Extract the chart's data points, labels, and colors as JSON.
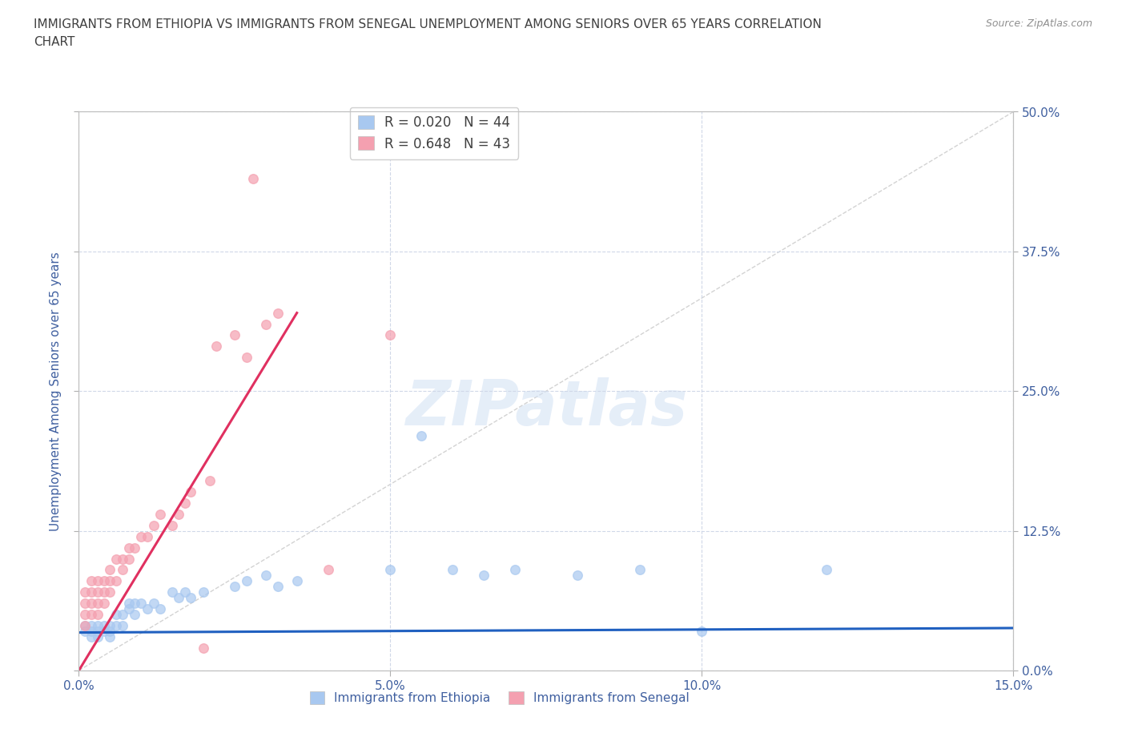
{
  "title_line1": "IMMIGRANTS FROM ETHIOPIA VS IMMIGRANTS FROM SENEGAL UNEMPLOYMENT AMONG SENIORS OVER 65 YEARS CORRELATION",
  "title_line2": "CHART",
  "source": "Source: ZipAtlas.com",
  "ylabel": "Unemployment Among Seniors over 65 years",
  "xlim": [
    0.0,
    0.15
  ],
  "ylim": [
    0.0,
    0.5
  ],
  "xticks": [
    0.0,
    0.05,
    0.1,
    0.15
  ],
  "xtick_labels": [
    "0.0%",
    "5.0%",
    "10.0%",
    "15.0%"
  ],
  "yticks": [
    0.0,
    0.125,
    0.25,
    0.375,
    0.5
  ],
  "ytick_labels_right": [
    "0.0%",
    "12.5%",
    "25.0%",
    "37.5%",
    "50.0%"
  ],
  "ethiopia_R": 0.02,
  "ethiopia_N": 44,
  "senegal_R": 0.648,
  "senegal_N": 43,
  "ethiopia_color": "#a8c8f0",
  "senegal_color": "#f4a0b0",
  "ethiopia_line_color": "#2060c0",
  "senegal_line_color": "#e03060",
  "diagonal_color": "#c8c8c8",
  "watermark": "ZIPatlas",
  "ethiopia_x": [
    0.001,
    0.001,
    0.002,
    0.002,
    0.002,
    0.003,
    0.003,
    0.003,
    0.004,
    0.004,
    0.005,
    0.005,
    0.005,
    0.006,
    0.006,
    0.007,
    0.007,
    0.008,
    0.008,
    0.009,
    0.009,
    0.01,
    0.011,
    0.012,
    0.013,
    0.015,
    0.016,
    0.017,
    0.018,
    0.02,
    0.025,
    0.027,
    0.03,
    0.032,
    0.035,
    0.05,
    0.055,
    0.06,
    0.065,
    0.07,
    0.08,
    0.09,
    0.1,
    0.12
  ],
  "ethiopia_y": [
    0.035,
    0.04,
    0.04,
    0.035,
    0.03,
    0.04,
    0.035,
    0.03,
    0.04,
    0.035,
    0.04,
    0.035,
    0.03,
    0.05,
    0.04,
    0.05,
    0.04,
    0.06,
    0.055,
    0.06,
    0.05,
    0.06,
    0.055,
    0.06,
    0.055,
    0.07,
    0.065,
    0.07,
    0.065,
    0.07,
    0.075,
    0.08,
    0.085,
    0.075,
    0.08,
    0.09,
    0.21,
    0.09,
    0.085,
    0.09,
    0.085,
    0.09,
    0.035,
    0.09
  ],
  "senegal_x": [
    0.001,
    0.001,
    0.001,
    0.001,
    0.002,
    0.002,
    0.002,
    0.002,
    0.003,
    0.003,
    0.003,
    0.003,
    0.004,
    0.004,
    0.004,
    0.005,
    0.005,
    0.005,
    0.006,
    0.006,
    0.007,
    0.007,
    0.008,
    0.008,
    0.009,
    0.01,
    0.011,
    0.012,
    0.013,
    0.015,
    0.016,
    0.017,
    0.018,
    0.02,
    0.021,
    0.022,
    0.025,
    0.027,
    0.028,
    0.03,
    0.032,
    0.04,
    0.05
  ],
  "senegal_y": [
    0.04,
    0.05,
    0.06,
    0.07,
    0.05,
    0.06,
    0.07,
    0.08,
    0.05,
    0.06,
    0.07,
    0.08,
    0.06,
    0.07,
    0.08,
    0.07,
    0.08,
    0.09,
    0.08,
    0.1,
    0.09,
    0.1,
    0.1,
    0.11,
    0.11,
    0.12,
    0.12,
    0.13,
    0.14,
    0.13,
    0.14,
    0.15,
    0.16,
    0.02,
    0.17,
    0.29,
    0.3,
    0.28,
    0.44,
    0.31,
    0.32,
    0.09,
    0.3
  ],
  "background_color": "#ffffff",
  "grid_color": "#d0d8e8",
  "title_color": "#404040",
  "axis_label_color": "#4060a0",
  "tick_color": "#4060a0"
}
